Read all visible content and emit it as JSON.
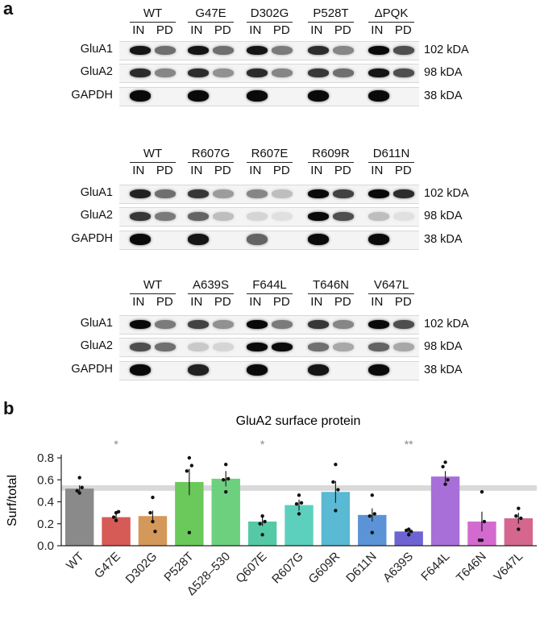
{
  "panel_a": {
    "label": "a",
    "lane_sub": [
      "IN",
      "PD"
    ],
    "rows": [
      "GluA1",
      "GluA2",
      "GAPDH"
    ],
    "sizes": [
      "102 kDA",
      "98 kDA",
      "38 kDA"
    ],
    "blot1": {
      "groups": [
        "WT",
        "G47E",
        "D302G",
        "P528T",
        "ΔPQK"
      ],
      "intensity": {
        "GluA1": [
          [
            0.95,
            0.55
          ],
          [
            0.95,
            0.55
          ],
          [
            0.95,
            0.5
          ],
          [
            0.85,
            0.45
          ],
          [
            1.0,
            0.7
          ]
        ],
        "GluA2": [
          [
            0.85,
            0.45
          ],
          [
            0.85,
            0.4
          ],
          [
            0.85,
            0.45
          ],
          [
            0.8,
            0.55
          ],
          [
            0.95,
            0.7
          ]
        ],
        "GAPDH": [
          [
            1.0,
            0.0
          ],
          [
            1.0,
            0.0
          ],
          [
            1.0,
            0.0
          ],
          [
            1.0,
            0.0
          ],
          [
            1.0,
            0.0
          ]
        ]
      }
    },
    "blot2": {
      "groups": [
        "WT",
        "R607G",
        "R607E",
        "R609R",
        "D611N"
      ],
      "intensity": {
        "GluA1": [
          [
            0.9,
            0.55
          ],
          [
            0.8,
            0.35
          ],
          [
            0.45,
            0.2
          ],
          [
            1.0,
            0.75
          ],
          [
            1.0,
            0.85
          ]
        ],
        "GluA2": [
          [
            0.8,
            0.5
          ],
          [
            0.6,
            0.2
          ],
          [
            0.1,
            0.05
          ],
          [
            1.0,
            0.7
          ],
          [
            0.2,
            0.05
          ]
        ],
        "GAPDH": [
          [
            1.0,
            0.0
          ],
          [
            0.95,
            0.0
          ],
          [
            0.6,
            0.0
          ],
          [
            1.0,
            0.0
          ],
          [
            1.0,
            0.0
          ]
        ]
      }
    },
    "blot3": {
      "groups": [
        "WT",
        "A639S",
        "F644L",
        "T646N",
        "V647L"
      ],
      "intensity": {
        "GluA1": [
          [
            1.0,
            0.5
          ],
          [
            0.75,
            0.4
          ],
          [
            1.0,
            0.5
          ],
          [
            0.8,
            0.45
          ],
          [
            1.0,
            0.7
          ]
        ],
        "GluA2": [
          [
            0.7,
            0.55
          ],
          [
            0.15,
            0.1
          ],
          [
            1.0,
            1.0
          ],
          [
            0.55,
            0.3
          ],
          [
            0.6,
            0.3
          ]
        ],
        "GAPDH": [
          [
            1.0,
            0.0
          ],
          [
            0.9,
            0.0
          ],
          [
            1.0,
            0.0
          ],
          [
            0.95,
            0.0
          ],
          [
            1.0,
            0.0
          ]
        ]
      }
    }
  },
  "panel_b": {
    "label": "b"
  },
  "chart_data": {
    "type": "bar",
    "title": "GluA2 surface protein",
    "ylabel": "Surf/total",
    "xlabel": "",
    "ylim": [
      0,
      0.8
    ],
    "yticks": [
      "0.0",
      "0.2",
      "0.4",
      "0.6",
      "0.8"
    ],
    "reference_band": [
      0.5,
      0.55
    ],
    "categories": [
      "WT",
      "G47E",
      "D302G",
      "P528T",
      "Δ528–530",
      "Q607E",
      "R607G",
      "G609R",
      "D611N",
      "A639S",
      "F644L",
      "T646N",
      "V647L"
    ],
    "values": [
      0.52,
      0.26,
      0.27,
      0.58,
      0.61,
      0.22,
      0.37,
      0.49,
      0.28,
      0.13,
      0.63,
      0.22,
      0.25
    ],
    "errors": [
      0.03,
      0.03,
      0.05,
      0.12,
      0.07,
      0.04,
      0.05,
      0.1,
      0.06,
      0.02,
      0.05,
      0.09,
      0.05
    ],
    "colors": [
      "#8a8a8a",
      "#d65a55",
      "#d4985a",
      "#6bc85b",
      "#6dd07f",
      "#55c9a6",
      "#5dcfbd",
      "#5ab9d3",
      "#5b93d6",
      "#6e63d3",
      "#a86fd9",
      "#d36acf",
      "#d5668d"
    ],
    "points": [
      [
        0.62,
        0.5,
        0.48,
        0.53
      ],
      [
        0.3,
        0.26,
        0.23,
        0.31
      ],
      [
        0.44,
        0.3,
        0.22,
        0.13
      ],
      [
        0.8,
        0.68,
        0.12,
        0.73
      ],
      [
        0.74,
        0.6,
        0.49,
        0.61
      ],
      [
        0.27,
        0.2,
        0.1,
        0.22
      ],
      [
        0.46,
        0.38,
        0.29,
        0.39
      ],
      [
        0.74,
        0.58,
        0.32,
        0.51
      ],
      [
        0.46,
        0.27,
        0.12,
        0.29
      ],
      [
        0.15,
        0.14,
        0.1,
        0.13
      ],
      [
        0.76,
        0.72,
        0.56,
        0.6
      ],
      [
        0.49,
        0.05,
        0.05,
        0.22
      ],
      [
        0.34,
        0.27,
        0.15,
        0.25
      ]
    ],
    "significance": [
      "",
      "*",
      "",
      "",
      "",
      "*",
      "",
      "",
      "",
      "**",
      "",
      "",
      ""
    ]
  }
}
